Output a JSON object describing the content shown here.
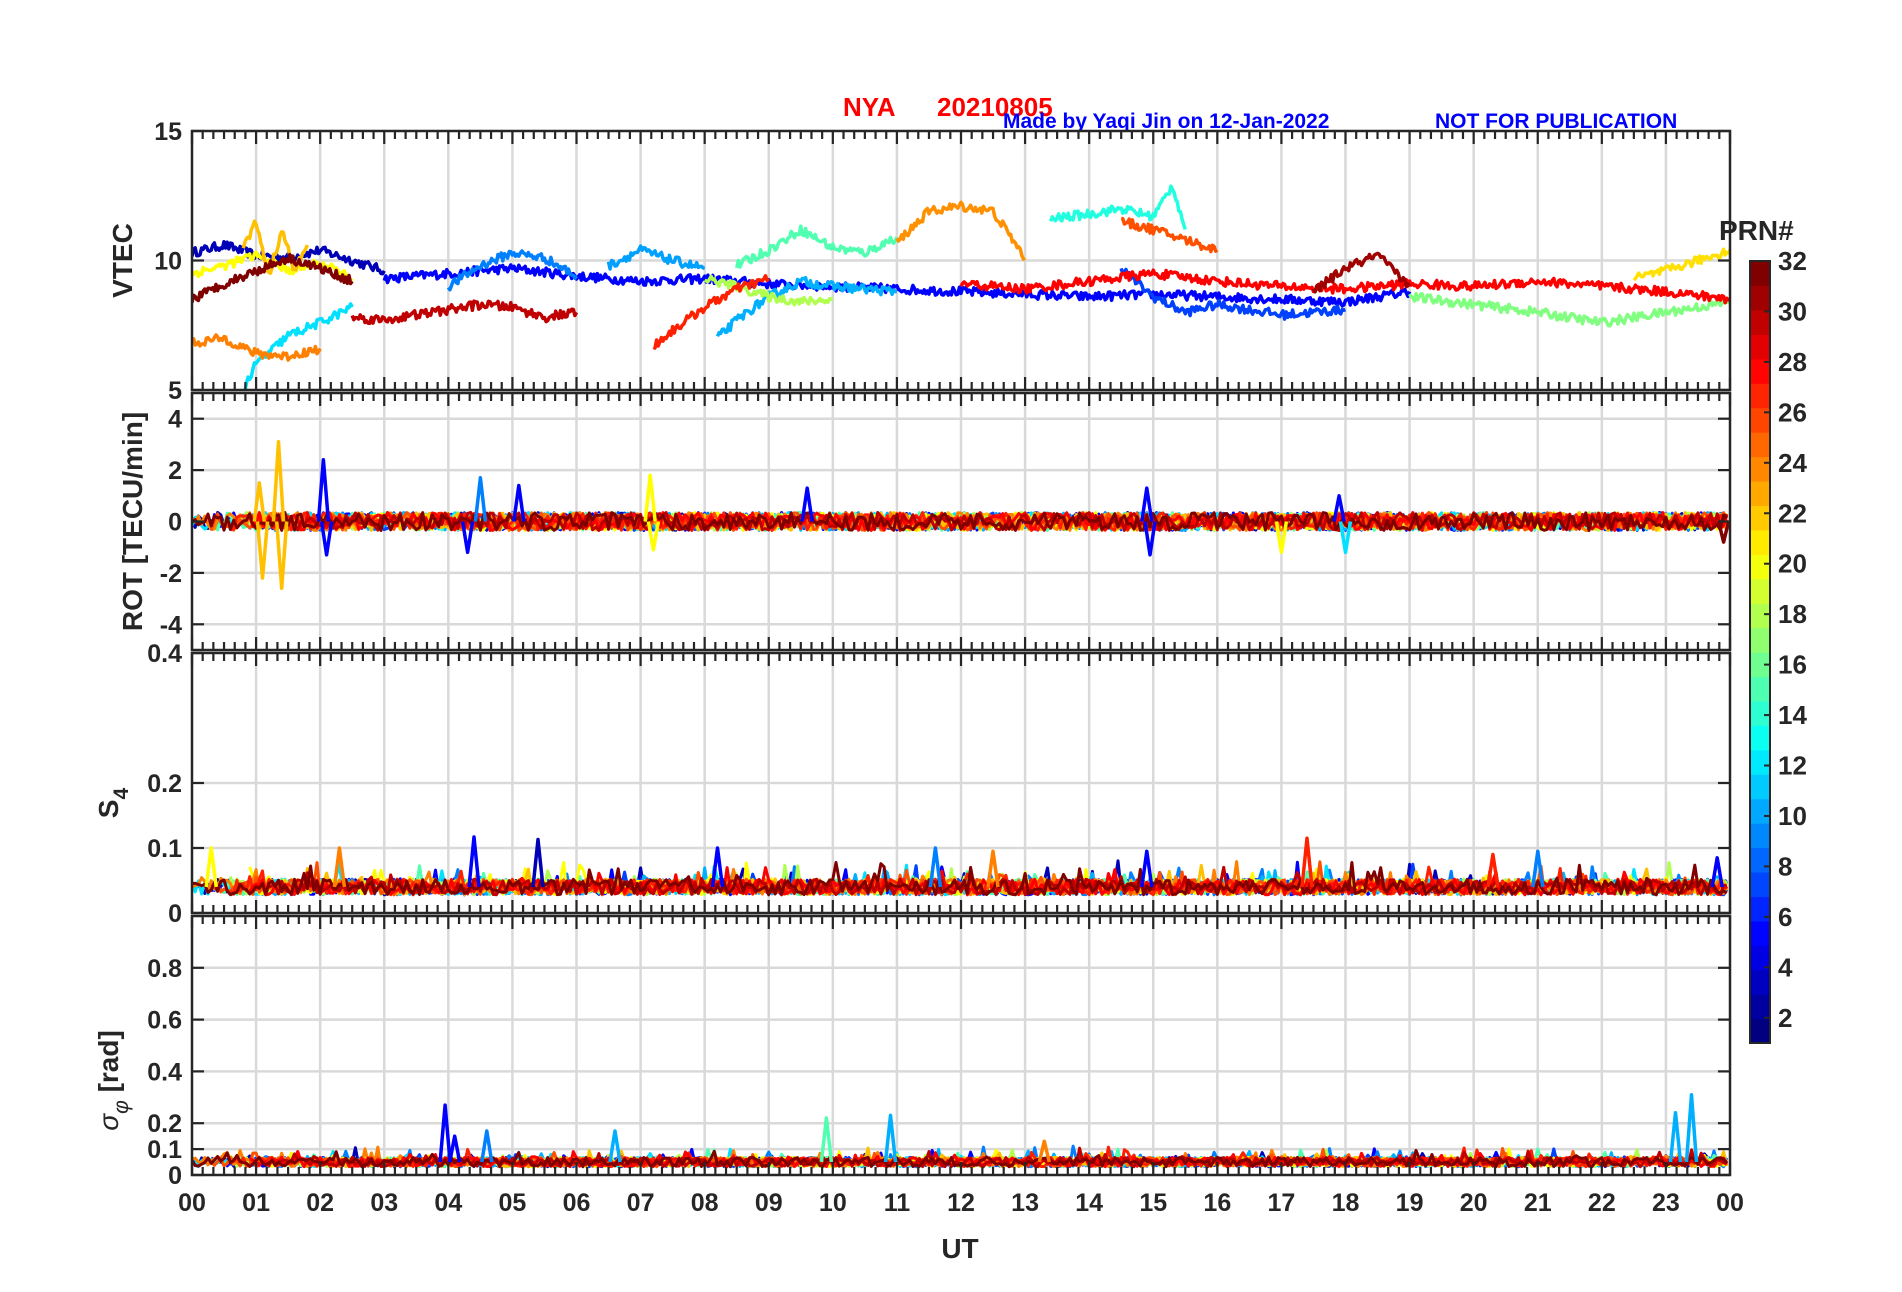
{
  "header": {
    "station": "NYA",
    "date": "20210805",
    "credit": "Made by Yaqi Jin on 12-Jan-2022",
    "notice": "NOT FOR PUBLICATION",
    "title_color": "#ff0000",
    "credit_color": "#0000ff"
  },
  "colorbar": {
    "label": "PRN#",
    "ticks": [
      2,
      4,
      6,
      8,
      10,
      12,
      14,
      16,
      18,
      20,
      22,
      24,
      26,
      28,
      30,
      32
    ],
    "min": 1,
    "max": 32,
    "colormap": "jet"
  },
  "chart_data": [
    {
      "type": "line",
      "panel": "vtec",
      "ylabel": "VTEC",
      "ylim": [
        5,
        15
      ],
      "yticks": [
        5,
        10,
        15
      ],
      "xlim": [
        0,
        24
      ],
      "grid": true,
      "series": [
        {
          "prn": 2,
          "color": "#0000b7",
          "x": [
            0,
            0.5,
            1,
            1.5,
            2,
            2.5,
            3
          ],
          "y": [
            10.3,
            10.6,
            10.2,
            10.1,
            10.4,
            10.0,
            9.6
          ]
        },
        {
          "prn": 4,
          "color": "#0000ff",
          "x": [
            3,
            4,
            5,
            6,
            7,
            8,
            9,
            10,
            11,
            12,
            13,
            14,
            15,
            16,
            17,
            18,
            19
          ],
          "y": [
            9.3,
            9.5,
            9.7,
            9.4,
            9.2,
            9.3,
            9.1,
            9.0,
            8.9,
            8.8,
            8.7,
            8.6,
            8.7,
            8.6,
            8.5,
            8.4,
            8.8
          ]
        },
        {
          "prn": 6,
          "color": "#0040ff",
          "x": [
            14.5,
            15,
            15.5,
            16,
            17,
            18
          ],
          "y": [
            9.7,
            8.6,
            8.0,
            8.3,
            7.9,
            8.1
          ]
        },
        {
          "prn": 8,
          "color": "#0080ff",
          "x": [
            4,
            4.5,
            5,
            5.5,
            6
          ],
          "y": [
            9.0,
            9.8,
            10.3,
            10.1,
            9.4
          ]
        },
        {
          "prn": 10,
          "color": "#00a0ff",
          "x": [
            6.5,
            7,
            7.5,
            8
          ],
          "y": [
            9.8,
            10.4,
            10.0,
            9.7
          ]
        },
        {
          "prn": 11,
          "color": "#00b0ff",
          "x": [
            8.2,
            8.5,
            9,
            9.5,
            10,
            11
          ],
          "y": [
            7.0,
            7.7,
            8.6,
            9.2,
            9.0,
            8.8
          ]
        },
        {
          "prn": 12,
          "color": "#00e0ff",
          "x": [
            0.8,
            1.0,
            1.5,
            2.0,
            2.5
          ],
          "y": [
            5.0,
            6.0,
            7.1,
            7.6,
            8.2
          ]
        },
        {
          "prn": 13,
          "color": "#20ffdf",
          "x": [
            13.4,
            14,
            14.5,
            15,
            15.3,
            15.5
          ],
          "y": [
            11.6,
            11.8,
            12.0,
            11.7,
            12.9,
            11.2
          ]
        },
        {
          "prn": 15,
          "color": "#50ffaf",
          "x": [
            8.5,
            9,
            9.5,
            10,
            10.5,
            11
          ],
          "y": [
            9.8,
            10.4,
            11.2,
            10.5,
            10.3,
            10.9
          ]
        },
        {
          "prn": 17,
          "color": "#80ff80",
          "x": [
            19,
            20,
            21,
            22,
            23,
            24
          ],
          "y": [
            8.6,
            8.3,
            8.0,
            7.6,
            8.0,
            8.4
          ]
        },
        {
          "prn": 19,
          "color": "#b0ff50",
          "x": [
            8,
            8.5,
            9,
            9.5,
            10
          ],
          "y": [
            9.3,
            9.0,
            8.6,
            8.4,
            8.5
          ]
        },
        {
          "prn": 20,
          "color": "#ffff00",
          "x": [
            0,
            0.5,
            1,
            1.5,
            2,
            2.5
          ],
          "y": [
            9.5,
            9.8,
            10.2,
            9.6,
            9.9,
            9.3
          ]
        },
        {
          "prn": 21,
          "color": "#ffe000",
          "x": [
            22.5,
            23,
            23.5,
            24
          ],
          "y": [
            9.3,
            9.6,
            10.0,
            10.4
          ]
        },
        {
          "prn": 22,
          "color": "#ffc000",
          "x": [
            0.8,
            1.0,
            1.2,
            1.4,
            1.6,
            1.8
          ],
          "y": [
            10.5,
            11.5,
            9.4,
            11.2,
            9.6,
            10.6
          ]
        },
        {
          "prn": 23,
          "color": "#ff9000",
          "x": [
            11,
            11.5,
            12,
            12.5,
            13
          ],
          "y": [
            10.7,
            11.9,
            12.1,
            11.9,
            10.1
          ]
        },
        {
          "prn": 24,
          "color": "#ff8000",
          "x": [
            0,
            0.5,
            1,
            1.5,
            2
          ],
          "y": [
            6.8,
            7.0,
            6.4,
            6.3,
            6.6
          ]
        },
        {
          "prn": 25,
          "color": "#ff5000",
          "x": [
            14.5,
            15,
            15.5,
            16
          ],
          "y": [
            11.5,
            11.2,
            10.8,
            10.4
          ]
        },
        {
          "prn": 27,
          "color": "#ff2000",
          "x": [
            7.2,
            7.5,
            8,
            8.5,
            9
          ],
          "y": [
            6.7,
            7.3,
            8.2,
            8.9,
            9.3
          ]
        },
        {
          "prn": 28,
          "color": "#ff0000",
          "x": [
            12,
            13,
            14,
            15,
            16,
            17,
            18,
            19,
            20,
            21,
            22,
            23,
            24
          ],
          "y": [
            9.1,
            8.9,
            9.2,
            9.5,
            9.2,
            9.0,
            8.9,
            9.1,
            9.0,
            9.2,
            9.0,
            8.8,
            8.5
          ]
        },
        {
          "prn": 30,
          "color": "#c00000",
          "x": [
            2.5,
            3,
            3.5,
            4,
            4.5,
            5,
            5.5,
            6
          ],
          "y": [
            7.8,
            7.7,
            7.9,
            8.1,
            8.3,
            8.2,
            7.8,
            8.0
          ]
        },
        {
          "prn": 31,
          "color": "#a00000",
          "x": [
            17.5,
            18,
            18.5,
            19
          ],
          "y": [
            8.8,
            9.7,
            10.2,
            9.0
          ]
        },
        {
          "prn": 32,
          "color": "#800000",
          "x": [
            0,
            0.5,
            1,
            1.5,
            2,
            2.5
          ],
          "y": [
            8.5,
            9.1,
            9.6,
            10.1,
            9.7,
            9.2
          ]
        }
      ]
    },
    {
      "type": "line",
      "panel": "rot",
      "ylabel": "ROT [TECU/min]",
      "ylim": [
        -5,
        5
      ],
      "yticks": [
        -4,
        -2,
        0,
        2,
        4
      ],
      "xlim": [
        0,
        24
      ],
      "grid": true,
      "spikes": [
        {
          "x": 1.05,
          "y": 1.5,
          "color": "#ffc000"
        },
        {
          "x": 1.1,
          "y": -2.2,
          "color": "#ffc000"
        },
        {
          "x": 1.35,
          "y": 3.1,
          "color": "#ffc000"
        },
        {
          "x": 1.4,
          "y": -2.6,
          "color": "#ffc000"
        },
        {
          "x": 2.05,
          "y": 2.4,
          "color": "#0000ff"
        },
        {
          "x": 2.1,
          "y": -1.3,
          "color": "#0000ff"
        },
        {
          "x": 4.5,
          "y": 1.7,
          "color": "#0080ff"
        },
        {
          "x": 4.3,
          "y": -1.2,
          "color": "#0000ff"
        },
        {
          "x": 5.1,
          "y": 1.4,
          "color": "#0000ff"
        },
        {
          "x": 7.15,
          "y": 1.8,
          "color": "#ffff00"
        },
        {
          "x": 7.2,
          "y": -1.1,
          "color": "#ffff00"
        },
        {
          "x": 9.6,
          "y": 1.3,
          "color": "#0000ff"
        },
        {
          "x": 14.9,
          "y": 1.3,
          "color": "#0000ff"
        },
        {
          "x": 14.95,
          "y": -1.3,
          "color": "#0000ff"
        },
        {
          "x": 17.0,
          "y": -1.2,
          "color": "#ffff00"
        },
        {
          "x": 17.9,
          "y": 1.0,
          "color": "#0000ff"
        },
        {
          "x": 18.0,
          "y": -1.2,
          "color": "#00e0ff"
        },
        {
          "x": 23.9,
          "y": -0.8,
          "color": "#800000"
        }
      ]
    },
    {
      "type": "line",
      "panel": "s4",
      "ylabel": "S4",
      "ylim": [
        0,
        0.4
      ],
      "yticks": [
        0,
        0.1,
        0.2,
        0.4
      ],
      "ytick_labels": [
        "0",
        "0.1",
        "0.2",
        "0.4"
      ],
      "xlim": [
        0,
        24
      ],
      "grid": true,
      "baseline": 0.04,
      "spikes": [
        {
          "x": 0.3,
          "y": 0.1,
          "color": "#ffff00"
        },
        {
          "x": 2.3,
          "y": 0.1,
          "color": "#ff8000"
        },
        {
          "x": 4.4,
          "y": 0.117,
          "color": "#0000ff"
        },
        {
          "x": 5.4,
          "y": 0.113,
          "color": "#0000b7"
        },
        {
          "x": 8.2,
          "y": 0.1,
          "color": "#0000ff"
        },
        {
          "x": 11.6,
          "y": 0.1,
          "color": "#0080ff"
        },
        {
          "x": 12.5,
          "y": 0.095,
          "color": "#ff8000"
        },
        {
          "x": 14.9,
          "y": 0.095,
          "color": "#0000ff"
        },
        {
          "x": 17.4,
          "y": 0.115,
          "color": "#ff2000"
        },
        {
          "x": 20.3,
          "y": 0.09,
          "color": "#ff2000"
        },
        {
          "x": 21.0,
          "y": 0.095,
          "color": "#0080ff"
        },
        {
          "x": 23.8,
          "y": 0.085,
          "color": "#0000ff"
        }
      ]
    },
    {
      "type": "line",
      "panel": "sigma_phi",
      "ylabel": "σφ [rad]",
      "ylim": [
        0,
        1.0
      ],
      "yticks": [
        0,
        0.1,
        0.2,
        0.4,
        0.6,
        0.8
      ],
      "ytick_labels": [
        "0",
        "0.1",
        "0.2",
        "0.4",
        "0.6",
        "0.8"
      ],
      "xlim": [
        0,
        24
      ],
      "grid": true,
      "baseline": 0.05,
      "spikes": [
        {
          "x": 3.95,
          "y": 0.27,
          "color": "#0000ff"
        },
        {
          "x": 4.1,
          "y": 0.15,
          "color": "#0000ff"
        },
        {
          "x": 4.6,
          "y": 0.17,
          "color": "#0080ff"
        },
        {
          "x": 6.6,
          "y": 0.17,
          "color": "#00b0ff"
        },
        {
          "x": 9.9,
          "y": 0.22,
          "color": "#50ffaf"
        },
        {
          "x": 10.9,
          "y": 0.23,
          "color": "#00b0ff"
        },
        {
          "x": 13.3,
          "y": 0.13,
          "color": "#ff8000"
        },
        {
          "x": 23.15,
          "y": 0.24,
          "color": "#00b0ff"
        },
        {
          "x": 23.4,
          "y": 0.31,
          "color": "#00b0ff"
        }
      ]
    }
  ],
  "xaxis": {
    "label": "UT",
    "tick_labels": [
      "00",
      "01",
      "02",
      "03",
      "04",
      "05",
      "06",
      "07",
      "08",
      "09",
      "10",
      "11",
      "12",
      "13",
      "14",
      "15",
      "16",
      "17",
      "18",
      "19",
      "20",
      "21",
      "22",
      "23",
      "00"
    ]
  }
}
